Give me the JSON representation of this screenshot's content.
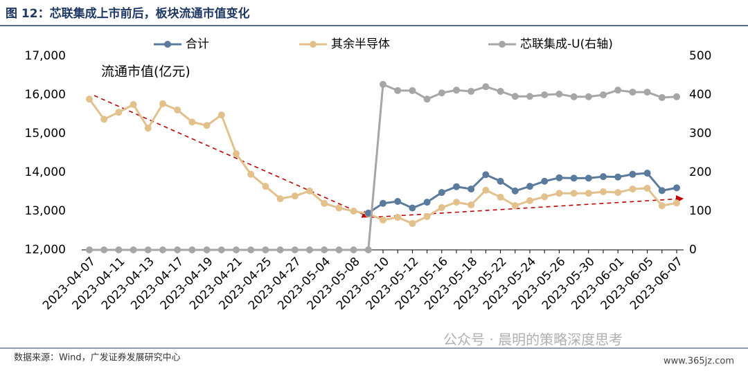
{
  "chart_data": {
    "type": "line",
    "title": "图 12：芯联集成上市前后，板块流通市值变化",
    "annotation": "流通市值(亿元)",
    "categories": [
      "2023-04-07",
      null,
      "2023-04-11",
      null,
      "2023-04-13",
      null,
      "2023-04-17",
      null,
      "2023-04-19",
      null,
      "2023-04-21",
      null,
      "2023-04-25",
      null,
      "2023-04-27",
      null,
      "2023-05-04",
      null,
      "2023-05-08",
      null,
      "2023-05-10",
      null,
      "2023-05-12",
      null,
      "2023-05-16",
      null,
      "2023-05-18",
      null,
      "2023-05-22",
      null,
      "2023-05-24",
      null,
      "2023-05-26",
      null,
      "2023-05-30",
      null,
      "2023-06-01",
      null,
      "2023-06-05",
      null,
      "2023-06-07"
    ],
    "series": [
      {
        "name": "合计",
        "color": "#5a7b9c",
        "values": [
          null,
          null,
          null,
          null,
          null,
          null,
          null,
          null,
          null,
          null,
          null,
          null,
          null,
          null,
          null,
          null,
          null,
          null,
          null,
          12950,
          13200,
          13250,
          13080,
          13230,
          13480,
          13630,
          13570,
          13940,
          13770,
          13520,
          13640,
          13770,
          13860,
          13850,
          13850,
          13890,
          13880,
          13950,
          13980,
          13530,
          13600
        ]
      },
      {
        "name": "其余半导体",
        "color": "#e2c18d",
        "values": [
          15890,
          15370,
          15550,
          15750,
          15140,
          15770,
          15610,
          15300,
          15210,
          15480,
          14480,
          13950,
          13640,
          13320,
          13390,
          13520,
          13200,
          13080,
          13000,
          12930,
          12770,
          12840,
          12680,
          12860,
          13090,
          13230,
          13160,
          13540,
          13360,
          13140,
          13270,
          13370,
          13460,
          13460,
          13460,
          13500,
          13480,
          13570,
          13590,
          13140,
          13210
        ]
      },
      {
        "name": "芯联集成-U(右轴)",
        "color": "#a6a6a6",
        "axis": "y2",
        "values": [
          0,
          0,
          0,
          0,
          0,
          0,
          0,
          0,
          0,
          0,
          0,
          0,
          0,
          0,
          0,
          0,
          0,
          0,
          0,
          0,
          427,
          411,
          411,
          389,
          405,
          412,
          409,
          421,
          409,
          396,
          396,
          400,
          402,
          395,
          395,
          400,
          412,
          407,
          407,
          393,
          395
        ]
      }
    ],
    "ylim": [
      12000,
      17000
    ],
    "yticks": [
      {
        "value": 12000,
        "label": "12,000"
      },
      {
        "value": 13000,
        "label": "13,000"
      },
      {
        "value": 14000,
        "label": "14,000"
      },
      {
        "value": 15000,
        "label": "15,000"
      },
      {
        "value": 16000,
        "label": "16,000"
      },
      {
        "value": 17000,
        "label": "17,000"
      }
    ],
    "y2lim": [
      0,
      500
    ],
    "y2ticks": [
      0,
      100,
      200,
      300,
      400,
      500
    ],
    "legend": "top"
  },
  "source": "数据来源：Wind，广发证券发展研究中心",
  "watermark": "公众号 · 晨明的策略深度思考",
  "site": "www.365jz.com"
}
